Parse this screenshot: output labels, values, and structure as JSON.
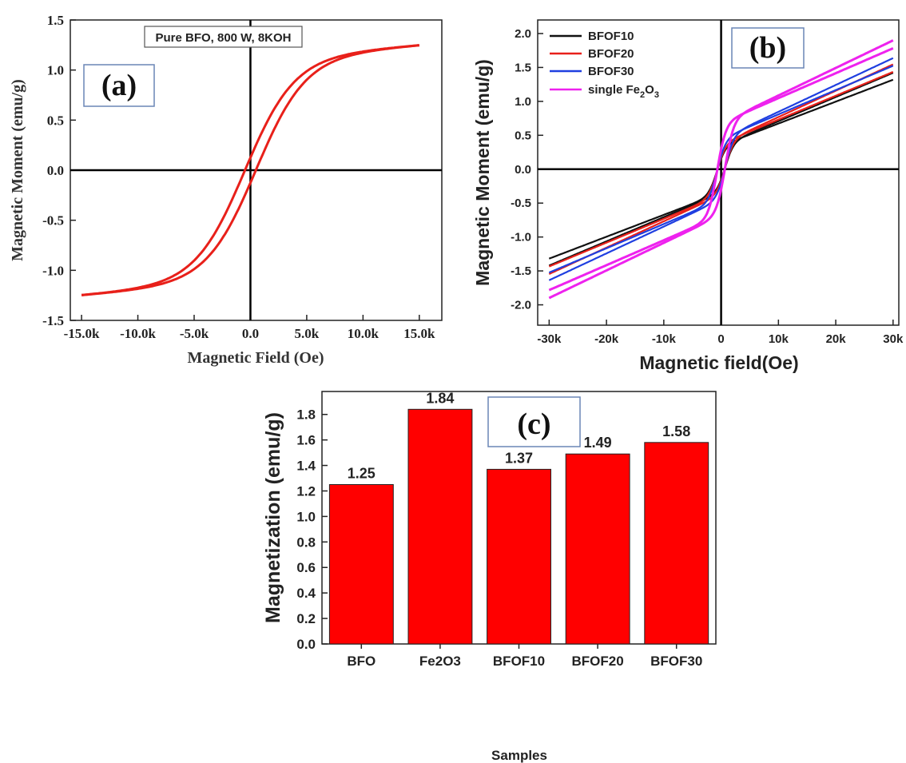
{
  "chart_data": [
    {
      "panel": "(a)",
      "type": "line",
      "annotation": "Pure BFO, 800 W, 8KOH",
      "xlabel": "Magnetic Field (Oe)",
      "ylabel": "Magnetic Moment (emu/g)",
      "xlim": [
        -16000,
        17000
      ],
      "ylim": [
        -1.5,
        1.5
      ],
      "xticks": [
        -15000,
        -10000,
        -5000,
        0,
        5000,
        10000,
        15000
      ],
      "xtick_labels": [
        "-15.0k",
        "-10.0k",
        "-5.0k",
        "0.0",
        "5.0k",
        "10.0k",
        "15.0k"
      ],
      "yticks": [
        -1.5,
        -1.0,
        -0.5,
        0.0,
        0.5,
        1.0,
        1.5
      ],
      "ytick_labels": [
        "-1.5",
        "-1.0",
        "-0.5",
        "0.0",
        "0.5",
        "1.0",
        "1.5"
      ],
      "series": [
        {
          "color": "#e8201a",
          "ms": 1.25,
          "hc": 500,
          "h0": 2000,
          "slope": 9.38e-06
        }
      ]
    },
    {
      "panel": "(b)",
      "type": "line",
      "xlabel": "Magnetic field(Oe)",
      "ylabel": "Magnetic Moment (emu/g)",
      "xlim": [
        -32000,
        31000
      ],
      "ylim": [
        -2.3,
        2.2
      ],
      "xticks": [
        -30000,
        -20000,
        -10000,
        0,
        10000,
        20000,
        30000
      ],
      "xtick_labels": [
        "-30k",
        "-20k",
        "-10k",
        "0",
        "10k",
        "20k",
        "30k"
      ],
      "yticks": [
        -2.0,
        -1.5,
        -1.0,
        -0.5,
        0.0,
        0.5,
        1.0,
        1.5,
        2.0
      ],
      "ytick_labels": [
        "-2.0",
        "-1.5",
        "-1.0",
        "-0.5",
        "0.0",
        "0.5",
        "1.0",
        "1.5",
        "2.0"
      ],
      "legend_position": "top-left",
      "series": [
        {
          "name": "BFOF10",
          "color": "#111111",
          "ms": 1.37,
          "sat": 0.35,
          "slope": 3.4e-05
        },
        {
          "name": "BFOF20",
          "color": "#e8201a",
          "ms": 1.49,
          "sat": 0.38,
          "slope": 3.7e-05
        },
        {
          "name": "BFOF30",
          "color": "#1f3fe0",
          "ms": 1.58,
          "sat": 0.45,
          "slope": 3.77e-05
        },
        {
          "name": "single Fe",
          "name_sub": "2",
          "name_mid": "O",
          "name_sub2": "3",
          "color": "#ee22ee",
          "ms": 1.84,
          "sat": 0.68,
          "slope": 3.87e-05
        }
      ]
    },
    {
      "panel": "(c)",
      "type": "bar",
      "xlabel": "Samples",
      "ylabel": "Magnetization (emu/g)",
      "ylim": [
        0,
        1.98
      ],
      "yticks": [
        0.0,
        0.2,
        0.4,
        0.6,
        0.8,
        1.0,
        1.2,
        1.4,
        1.6,
        1.8
      ],
      "ytick_labels": [
        "0.0",
        "0.2",
        "0.4",
        "0.6",
        "0.8",
        "1.0",
        "1.2",
        "1.4",
        "1.6",
        "1.8"
      ],
      "categories": [
        "BFO",
        "Fe2O3",
        "BFOF10",
        "BFOF20",
        "BFOF30"
      ],
      "values": [
        1.25,
        1.84,
        1.37,
        1.49,
        1.58
      ],
      "value_labels": [
        "1.25",
        "1.84",
        "1.37",
        "1.49",
        "1.58"
      ],
      "bar_color": "#ff0000"
    }
  ]
}
